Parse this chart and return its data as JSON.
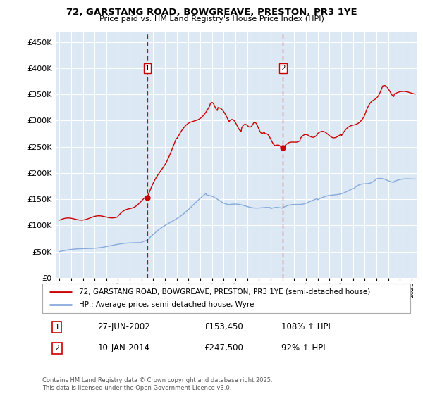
{
  "title": "72, GARSTANG ROAD, BOWGREAVE, PRESTON, PR3 1YE",
  "subtitle": "Price paid vs. HM Land Registry's House Price Index (HPI)",
  "background_color": "#e8f0f8",
  "plot_bg_color": "#dce9f5",
  "red_line_color": "#cc0000",
  "blue_line_color": "#88aadd",
  "marker1_date_x": 2002.49,
  "marker1_y": 153450,
  "marker2_date_x": 2014.03,
  "marker2_y": 247500,
  "legend_label_red": "72, GARSTANG ROAD, BOWGREAVE, PRESTON, PR3 1YE (semi-detached house)",
  "legend_label_blue": "HPI: Average price, semi-detached house, Wyre",
  "annotation1_label": "1",
  "annotation1_date": "27-JUN-2002",
  "annotation1_price": "£153,450",
  "annotation1_hpi": "108% ↑ HPI",
  "annotation2_label": "2",
  "annotation2_date": "10-JAN-2014",
  "annotation2_price": "£247,500",
  "annotation2_hpi": "92% ↑ HPI",
  "footer": "Contains HM Land Registry data © Crown copyright and database right 2025.\nThis data is licensed under the Open Government Licence v3.0.",
  "ylim": [
    0,
    470000
  ],
  "xlim_start": 1994.7,
  "xlim_end": 2025.5
}
